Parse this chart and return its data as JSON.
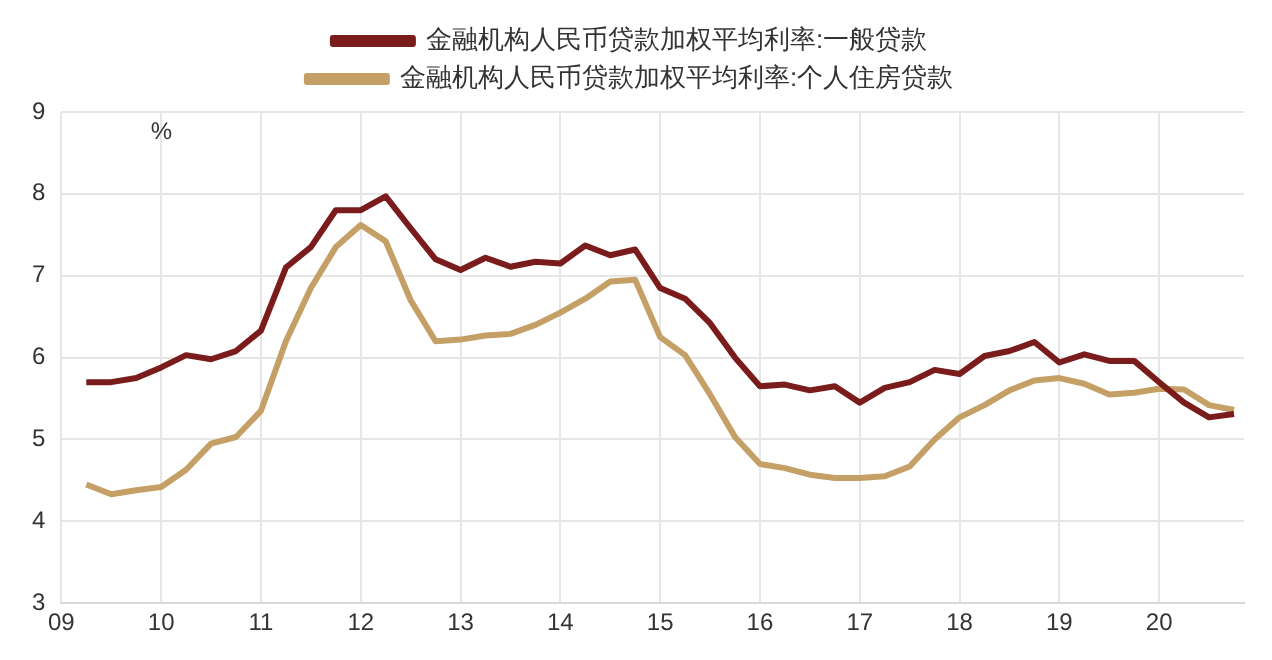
{
  "chart_data": {
    "type": "line",
    "ylabel": "%",
    "legend": "top",
    "grid": true,
    "marker": "none",
    "line_style": "solid",
    "x": [
      2009.25,
      2009.5,
      2009.75,
      2010,
      2010.25,
      2010.5,
      2010.75,
      2011,
      2011.25,
      2011.5,
      2011.75,
      2012,
      2012.25,
      2012.5,
      2012.75,
      2013,
      2013.25,
      2013.5,
      2013.75,
      2014,
      2014.25,
      2014.5,
      2014.75,
      2015,
      2015.25,
      2015.5,
      2015.75,
      2016,
      2016.25,
      2016.5,
      2016.75,
      2017,
      2017.25,
      2017.5,
      2017.75,
      2018,
      2018.25,
      2018.5,
      2018.75,
      2019,
      2019.25,
      2019.5,
      2019.75,
      2020,
      2020.25,
      2020.5,
      2020.75
    ],
    "xlim": [
      2009,
      2020.85
    ],
    "xticks": [
      {
        "value": 2009,
        "label": "09"
      },
      {
        "value": 2010,
        "label": "10"
      },
      {
        "value": 2011,
        "label": "11"
      },
      {
        "value": 2012,
        "label": "12"
      },
      {
        "value": 2013,
        "label": "13"
      },
      {
        "value": 2014,
        "label": "14"
      },
      {
        "value": 2015,
        "label": "15"
      },
      {
        "value": 2016,
        "label": "16"
      },
      {
        "value": 2017,
        "label": "17"
      },
      {
        "value": 2018,
        "label": "18"
      },
      {
        "value": 2019,
        "label": "19"
      },
      {
        "value": 2020,
        "label": "20"
      }
    ],
    "ylim": [
      3,
      9
    ],
    "yticks": [
      3,
      4,
      5,
      6,
      7,
      8,
      9
    ],
    "series": [
      {
        "name": "金融机构人民币贷款加权平均利率:一般贷款",
        "color": "#7b1c1c",
        "values": [
          5.7,
          5.7,
          5.75,
          5.88,
          6.03,
          5.98,
          6.08,
          6.33,
          7.1,
          7.35,
          7.8,
          7.8,
          7.97,
          7.58,
          7.2,
          7.07,
          7.22,
          7.11,
          7.17,
          7.15,
          7.37,
          7.25,
          7.32,
          6.85,
          6.72,
          6.42,
          6.0,
          5.65,
          5.67,
          5.6,
          5.65,
          5.45,
          5.63,
          5.7,
          5.85,
          5.8,
          6.02,
          6.08,
          6.19,
          5.94,
          6.04,
          5.96,
          5.96,
          5.7,
          5.45,
          5.27,
          5.31
        ]
      },
      {
        "name": "金融机构人民币贷款加权平均利率:个人住房贷款",
        "color": "#c4a066",
        "values": [
          4.45,
          4.33,
          4.38,
          4.42,
          4.63,
          4.95,
          5.03,
          5.35,
          6.2,
          6.85,
          7.35,
          7.62,
          7.42,
          6.7,
          6.2,
          6.22,
          6.27,
          6.29,
          6.4,
          6.55,
          6.72,
          6.93,
          6.95,
          6.25,
          6.03,
          5.55,
          5.03,
          4.7,
          4.65,
          4.57,
          4.53,
          4.53,
          4.55,
          4.67,
          5.0,
          5.27,
          5.42,
          5.6,
          5.72,
          5.75,
          5.68,
          5.55,
          5.57,
          5.62,
          5.61,
          5.42,
          5.36
        ]
      }
    ]
  }
}
